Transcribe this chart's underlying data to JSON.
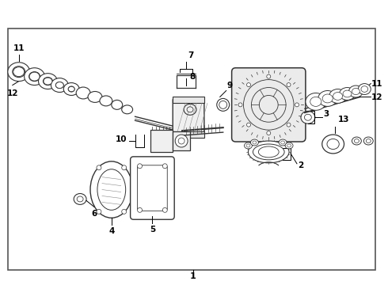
{
  "bg_color": "#ffffff",
  "border_color": "#555555",
  "text_color": "#000000",
  "gray": "#333333",
  "lgray": "#888888",
  "figsize": [
    4.9,
    3.6
  ],
  "dpi": 100
}
